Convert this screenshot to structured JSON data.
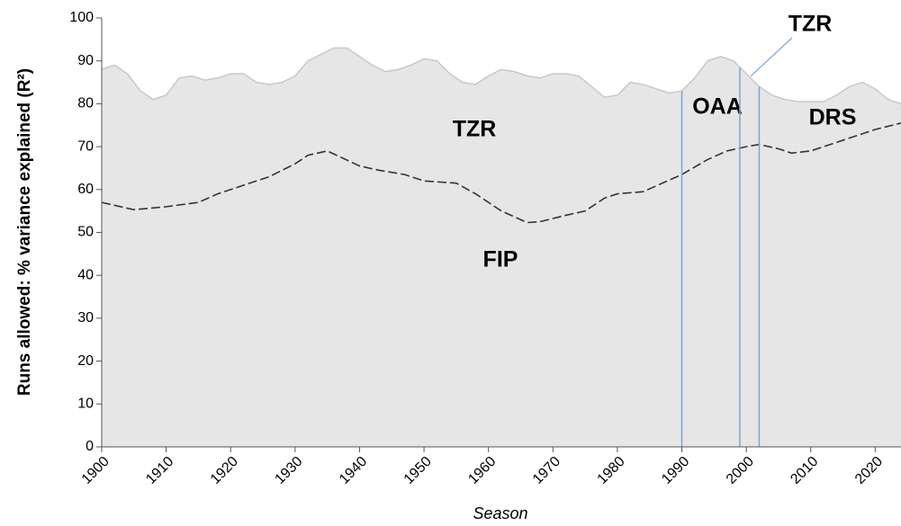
{
  "chart_data": {
    "type": "area-line",
    "xlabel": "Season",
    "ylabel": "Runs allowed: % variance explained (R²)",
    "xlim": [
      1900,
      2024
    ],
    "ylim": [
      0,
      100
    ],
    "xticks": [
      1900,
      1910,
      1920,
      1930,
      1940,
      1950,
      1960,
      1970,
      1980,
      1990,
      2000,
      2010,
      2020
    ],
    "yticks": [
      0,
      10,
      20,
      30,
      40,
      50,
      60,
      70,
      80,
      90,
      100
    ],
    "series": [
      {
        "name": "TZR",
        "kind": "area",
        "color": "#e6e6e6",
        "edge": "#c8c8c8",
        "x": [
          1900,
          1902,
          1904,
          1906,
          1908,
          1910,
          1912,
          1914,
          1916,
          1918,
          1920,
          1922,
          1924,
          1926,
          1928,
          1930,
          1932,
          1934,
          1936,
          1938,
          1940,
          1942,
          1944,
          1946,
          1948,
          1950,
          1952,
          1954,
          1956,
          1958,
          1960,
          1962,
          1964,
          1966,
          1968,
          1970,
          1972,
          1974,
          1976,
          1978,
          1980,
          1982,
          1984,
          1986,
          1988,
          1990,
          1992,
          1994,
          1996,
          1998,
          2000,
          2002,
          2004,
          2006,
          2008,
          2010,
          2012,
          2014,
          2016,
          2018,
          2020,
          2022,
          2024
        ],
        "values": [
          88,
          89,
          87,
          83,
          81,
          82,
          86,
          86.5,
          85.5,
          86,
          87,
          87,
          85,
          84.5,
          85,
          86.5,
          90,
          91.5,
          93,
          93,
          91,
          89,
          87.5,
          88,
          89,
          90.5,
          90,
          87,
          85,
          84.5,
          86.5,
          88,
          87.5,
          86.5,
          86,
          87,
          87,
          86.5,
          84,
          81.5,
          82,
          85,
          84.5,
          83.5,
          82.5,
          83,
          86,
          90,
          91,
          90,
          87,
          84,
          82,
          81,
          80.5,
          80.5,
          80.5,
          82,
          84,
          85,
          83.5,
          81,
          80
        ]
      },
      {
        "name": "FIP",
        "kind": "line",
        "color": "#333333",
        "x": [
          1900,
          1905,
          1910,
          1915,
          1918,
          1922,
          1926,
          1930,
          1932,
          1935,
          1940,
          1943,
          1947,
          1950,
          1955,
          1958,
          1962,
          1966,
          1968,
          1972,
          1975,
          1978,
          1980,
          1984,
          1987,
          1990,
          1994,
          1997,
          2000,
          2002,
          2005,
          2007,
          2010,
          2015,
          2020,
          2024
        ],
        "values": [
          57,
          55.3,
          56,
          57,
          59,
          61,
          63,
          66,
          68,
          69,
          65.5,
          64.5,
          63.5,
          62,
          61.5,
          59,
          55,
          52.3,
          52.5,
          54,
          55,
          58,
          59,
          59.5,
          61.5,
          63.5,
          67,
          69,
          70,
          70.5,
          69.5,
          68.5,
          69,
          71.5,
          74,
          75.5
        ]
      }
    ],
    "annotations": [
      {
        "label": "OAA",
        "x": 1990,
        "color": "#7aa7d6"
      },
      {
        "label": "TZR",
        "x": 1999,
        "color": "#7aa7d6"
      },
      {
        "label": "DRS",
        "x": 2002,
        "color": "#7aa7d6"
      }
    ]
  }
}
